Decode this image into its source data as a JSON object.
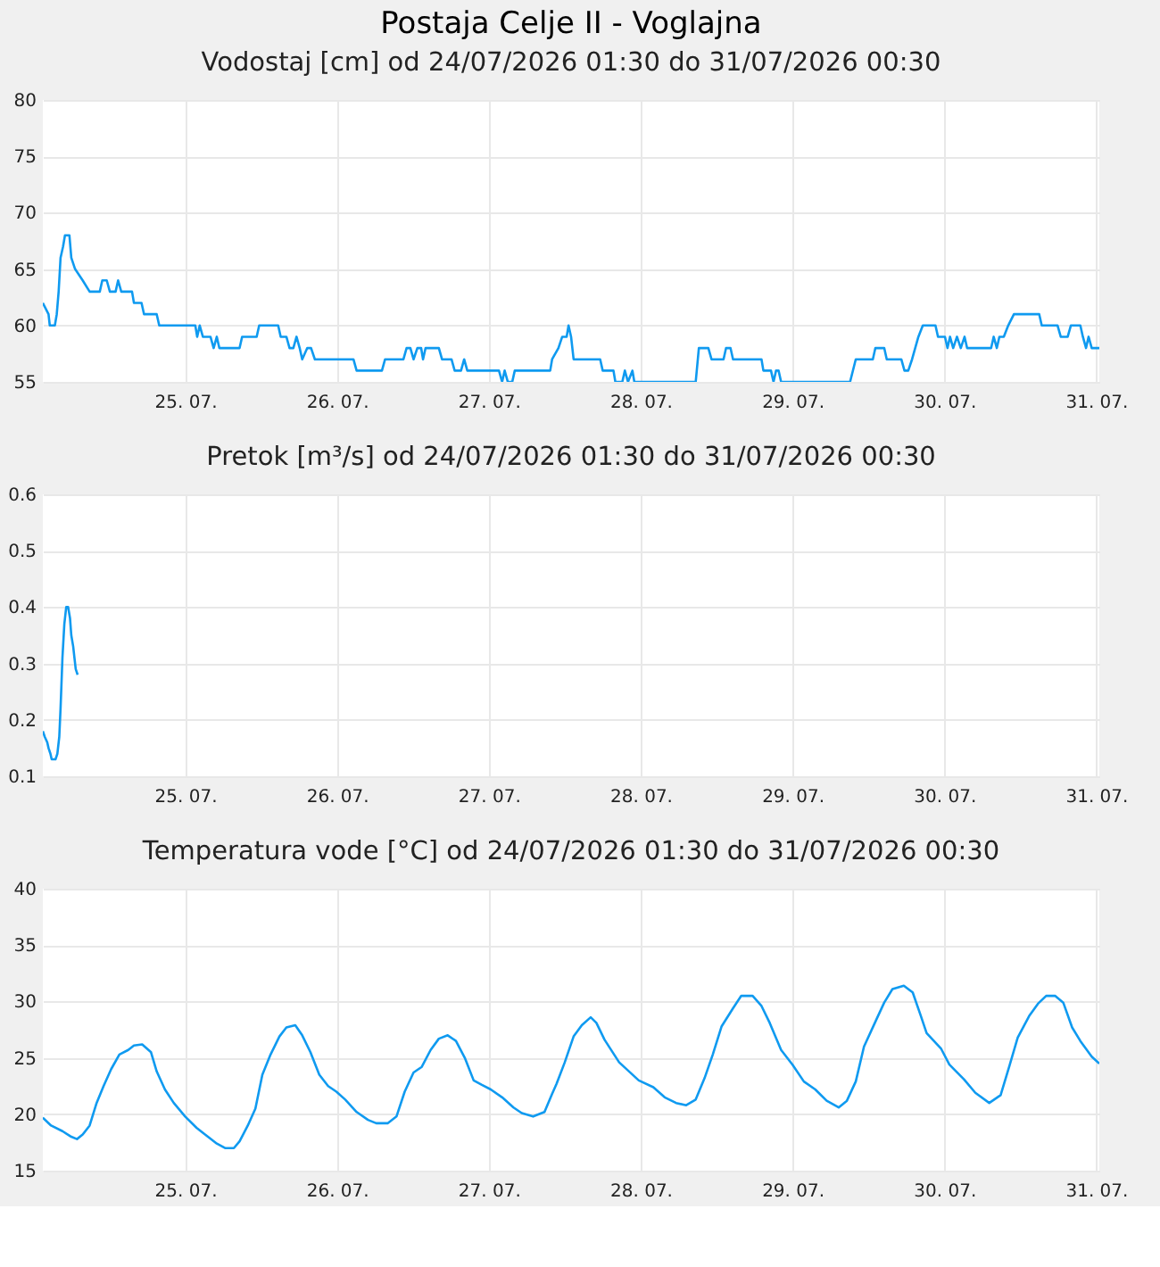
{
  "chart_data": [
    {
      "type": "line",
      "title": "Postaja Celje II - Voglajna",
      "subtitle": "Vodostaj [cm] od 24/07/2026 01:30 do 31/07/2026 00:30",
      "color": "#0f9af0",
      "grid": true,
      "marker": "none",
      "xlim": [
        "2026-07-24T01:30",
        "2026-07-31T00:30"
      ],
      "xticks": [
        {
          "value": "2026-07-25",
          "label": "25. 07."
        },
        {
          "value": "2026-07-26",
          "label": "26. 07."
        },
        {
          "value": "2026-07-27",
          "label": "27. 07."
        },
        {
          "value": "2026-07-28",
          "label": "28. 07."
        },
        {
          "value": "2026-07-29",
          "label": "29. 07."
        },
        {
          "value": "2026-07-30",
          "label": "30. 07."
        },
        {
          "value": "2026-07-31",
          "label": "31. 07."
        }
      ],
      "ylim": [
        55,
        80
      ],
      "yticks": [
        55,
        60,
        65,
        70,
        75,
        80
      ],
      "x": [
        "2026-07-24T01:30",
        "2026-07-24T02:24",
        "2026-07-24T02:36",
        "2026-07-24T03:24",
        "2026-07-24T03:42",
        "2026-07-24T04:00",
        "2026-07-24T04:18",
        "2026-07-24T04:42",
        "2026-07-24T05:00",
        "2026-07-24T05:42",
        "2026-07-24T06:00",
        "2026-07-24T06:36",
        "2026-07-24T07:48",
        "2026-07-24T08:54",
        "2026-07-24T10:30",
        "2026-07-24T10:54",
        "2026-07-24T11:36",
        "2026-07-24T12:06",
        "2026-07-24T13:00",
        "2026-07-24T13:24",
        "2026-07-24T13:54",
        "2026-07-24T15:36",
        "2026-07-24T15:54",
        "2026-07-24T17:06",
        "2026-07-24T17:30",
        "2026-07-24T19:30",
        "2026-07-24T19:54",
        "2026-07-25T01:36",
        "2026-07-25T01:54",
        "2026-07-25T02:18",
        "2026-07-25T02:48",
        "2026-07-25T04:00",
        "2026-07-25T04:30",
        "2026-07-25T05:00",
        "2026-07-25T05:24",
        "2026-07-25T08:36",
        "2026-07-25T09:00",
        "2026-07-25T11:18",
        "2026-07-25T11:42",
        "2026-07-25T14:42",
        "2026-07-25T15:06",
        "2026-07-25T16:00",
        "2026-07-25T16:30",
        "2026-07-25T17:06",
        "2026-07-25T17:36",
        "2026-07-25T18:06",
        "2026-07-25T18:30",
        "2026-07-25T19:18",
        "2026-07-25T19:54",
        "2026-07-25T20:30",
        "2026-07-26T02:36",
        "2026-07-26T03:06",
        "2026-07-26T07:06",
        "2026-07-26T07:36",
        "2026-07-26T10:30",
        "2026-07-26T11:00",
        "2026-07-26T11:36",
        "2026-07-26T12:06",
        "2026-07-26T12:42",
        "2026-07-26T13:18",
        "2026-07-26T13:36",
        "2026-07-26T14:00",
        "2026-07-26T16:06",
        "2026-07-26T16:36",
        "2026-07-26T18:06",
        "2026-07-26T18:36",
        "2026-07-26T19:36",
        "2026-07-26T20:06",
        "2026-07-26T20:36",
        "2026-07-27T01:36",
        "2026-07-27T02:06",
        "2026-07-27T02:30",
        "2026-07-27T03:00",
        "2026-07-27T03:42",
        "2026-07-27T04:06",
        "2026-07-27T09:42",
        "2026-07-27T10:00",
        "2026-07-27T11:00",
        "2026-07-27T11:36",
        "2026-07-27T12:18",
        "2026-07-27T12:36",
        "2026-07-27T13:00",
        "2026-07-27T13:24",
        "2026-07-27T17:36",
        "2026-07-27T18:00",
        "2026-07-27T19:42",
        "2026-07-27T20:00",
        "2026-07-27T21:06",
        "2026-07-27T21:30",
        "2026-07-27T22:00",
        "2026-07-27T22:42",
        "2026-07-27T23:00",
        "2026-07-28T08:42",
        "2026-07-28T09:12",
        "2026-07-28T10:42",
        "2026-07-28T11:12",
        "2026-07-28T13:06",
        "2026-07-28T13:30",
        "2026-07-28T14:12",
        "2026-07-28T14:36",
        "2026-07-28T19:06",
        "2026-07-28T19:24",
        "2026-07-28T20:36",
        "2026-07-28T21:00",
        "2026-07-28T21:24",
        "2026-07-28T21:48",
        "2026-07-28T22:12",
        "2026-07-29T09:06",
        "2026-07-29T10:00",
        "2026-07-29T12:42",
        "2026-07-29T13:06",
        "2026-07-29T14:30",
        "2026-07-29T14:54",
        "2026-07-29T17:12",
        "2026-07-29T17:42",
        "2026-07-29T18:18",
        "2026-07-29T18:54",
        "2026-07-29T19:54",
        "2026-07-29T20:36",
        "2026-07-29T22:36",
        "2026-07-29T23:00",
        "2026-07-30T00:06",
        "2026-07-30T00:30",
        "2026-07-30T00:54",
        "2026-07-30T01:24",
        "2026-07-30T02:00",
        "2026-07-30T02:36",
        "2026-07-30T03:12",
        "2026-07-30T03:36",
        "2026-07-30T07:24",
        "2026-07-30T07:48",
        "2026-07-30T08:18",
        "2026-07-30T08:42",
        "2026-07-30T09:24",
        "2026-07-30T10:06",
        "2026-07-30T11:00",
        "2026-07-30T15:00",
        "2026-07-30T15:24",
        "2026-07-30T17:54",
        "2026-07-30T18:24",
        "2026-07-30T19:30",
        "2026-07-30T20:00",
        "2026-07-30T21:30",
        "2026-07-30T21:54",
        "2026-07-30T22:24",
        "2026-07-30T22:48",
        "2026-07-30T23:18",
        "2026-07-31T00:30"
      ],
      "values": [
        62,
        61,
        60,
        60,
        61,
        63,
        66,
        67,
        68,
        68,
        66,
        65,
        64,
        63,
        63,
        64,
        64,
        63,
        63,
        64,
        63,
        63,
        62,
        62,
        61,
        61,
        60,
        60,
        59,
        60,
        59,
        59,
        58,
        59,
        58,
        58,
        59,
        59,
        60,
        60,
        59,
        59,
        58,
        58,
        59,
        58,
        57,
        58,
        58,
        57,
        57,
        56,
        56,
        57,
        57,
        58,
        58,
        57,
        58,
        58,
        57,
        58,
        58,
        57,
        57,
        56,
        56,
        57,
        56,
        56,
        55,
        56,
        55,
        55,
        56,
        56,
        57,
        58,
        59,
        59,
        60,
        59,
        57,
        57,
        56,
        56,
        55,
        55,
        56,
        55,
        56,
        55,
        55,
        58,
        58,
        57,
        57,
        58,
        58,
        57,
        57,
        56,
        56,
        55,
        56,
        56,
        55,
        55,
        57,
        57,
        58,
        58,
        57,
        57,
        56,
        56,
        57,
        59,
        60,
        60,
        59,
        59,
        58,
        59,
        58,
        59,
        58,
        59,
        58,
        58,
        59,
        58,
        59,
        59,
        60,
        61,
        61,
        60,
        60,
        59,
        59,
        60,
        60,
        59,
        58,
        59,
        58,
        58
      ]
    },
    {
      "type": "line",
      "title": "Pretok [m³/s] od 24/07/2026 01:30 do 31/07/2026 00:30",
      "color": "#0f9af0",
      "grid": true,
      "marker": "none",
      "xlim": [
        "2026-07-24T01:30",
        "2026-07-31T00:30"
      ],
      "xticks": [
        {
          "value": "2026-07-25",
          "label": "25. 07."
        },
        {
          "value": "2026-07-26",
          "label": "26. 07."
        },
        {
          "value": "2026-07-27",
          "label": "27. 07."
        },
        {
          "value": "2026-07-28",
          "label": "28. 07."
        },
        {
          "value": "2026-07-29",
          "label": "29. 07."
        },
        {
          "value": "2026-07-30",
          "label": "30. 07."
        },
        {
          "value": "2026-07-31",
          "label": "31. 07."
        }
      ],
      "ylim": [
        0.1,
        0.6
      ],
      "yticks": [
        0.1,
        0.2,
        0.3,
        0.4,
        0.5,
        0.6
      ],
      "x": [
        "2026-07-24T01:30",
        "2026-07-24T01:48",
        "2026-07-24T02:12",
        "2026-07-24T02:24",
        "2026-07-24T02:42",
        "2026-07-24T02:54",
        "2026-07-24T03:30",
        "2026-07-24T03:48",
        "2026-07-24T04:06",
        "2026-07-24T04:18",
        "2026-07-24T04:36",
        "2026-07-24T04:54",
        "2026-07-24T05:06",
        "2026-07-24T05:12",
        "2026-07-24T05:30",
        "2026-07-24T05:48",
        "2026-07-24T06:00",
        "2026-07-24T06:18",
        "2026-07-24T06:30",
        "2026-07-24T06:42",
        "2026-07-24T07:00"
      ],
      "values": [
        0.18,
        0.17,
        0.16,
        0.15,
        0.14,
        0.13,
        0.13,
        0.14,
        0.17,
        0.22,
        0.31,
        0.37,
        0.39,
        0.4,
        0.4,
        0.38,
        0.35,
        0.33,
        0.31,
        0.29,
        0.28
      ]
    },
    {
      "type": "line",
      "title": "Temperatura vode [°C] od 24/07/2026 01:30 do 31/07/2026 00:30",
      "color": "#0f9af0",
      "grid": true,
      "marker": "none",
      "xlim": [
        "2026-07-24T01:30",
        "2026-07-31T00:30"
      ],
      "xticks": [
        {
          "value": "2026-07-25",
          "label": "25. 07."
        },
        {
          "value": "2026-07-26",
          "label": "26. 07."
        },
        {
          "value": "2026-07-27",
          "label": "27. 07."
        },
        {
          "value": "2026-07-28",
          "label": "28. 07."
        },
        {
          "value": "2026-07-29",
          "label": "29. 07."
        },
        {
          "value": "2026-07-30",
          "label": "30. 07."
        },
        {
          "value": "2026-07-31",
          "label": "31. 07."
        }
      ],
      "ylim": [
        15,
        40
      ],
      "yticks": [
        15,
        20,
        25,
        30,
        35,
        40
      ],
      "x": [
        "2026-07-24T01:30",
        "2026-07-24T02:48",
        "2026-07-24T04:36",
        "2026-07-24T06:00",
        "2026-07-24T06:54",
        "2026-07-24T07:48",
        "2026-07-24T08:54",
        "2026-07-24T10:00",
        "2026-07-24T11:06",
        "2026-07-24T12:18",
        "2026-07-24T13:36",
        "2026-07-24T15:00",
        "2026-07-24T15:54",
        "2026-07-24T17:12",
        "2026-07-24T18:36",
        "2026-07-24T19:30",
        "2026-07-24T20:48",
        "2026-07-24T22:12",
        "2026-07-25T00:00",
        "2026-07-25T01:48",
        "2026-07-25T03:36",
        "2026-07-25T05:00",
        "2026-07-25T06:18",
        "2026-07-25T07:42",
        "2026-07-25T08:36",
        "2026-07-25T09:54",
        "2026-07-25T11:06",
        "2026-07-25T12:12",
        "2026-07-25T13:30",
        "2026-07-25T14:54",
        "2026-07-25T16:00",
        "2026-07-25T17:24",
        "2026-07-25T18:30",
        "2026-07-25T19:48",
        "2026-07-25T21:12",
        "2026-07-25T22:36",
        "2026-07-25T23:54",
        "2026-07-26T01:18",
        "2026-07-26T03:06",
        "2026-07-26T04:54",
        "2026-07-26T06:12",
        "2026-07-26T08:00",
        "2026-07-26T09:24",
        "2026-07-26T10:42",
        "2026-07-26T12:06",
        "2026-07-26T13:24",
        "2026-07-26T14:48",
        "2026-07-26T16:06",
        "2026-07-26T17:30",
        "2026-07-26T18:48",
        "2026-07-26T20:12",
        "2026-07-26T21:36",
        "2026-07-26T22:54",
        "2026-07-27T00:18",
        "2026-07-27T02:06",
        "2026-07-27T03:54",
        "2026-07-27T05:12",
        "2026-07-27T07:00",
        "2026-07-27T08:48",
        "2026-07-27T10:00",
        "2026-07-27T10:42",
        "2026-07-27T12:00",
        "2026-07-27T13:24",
        "2026-07-27T14:42",
        "2026-07-27T16:06",
        "2026-07-27T17:00",
        "2026-07-27T18:18",
        "2026-07-27T20:36",
        "2026-07-27T23:42",
        "2026-07-28T02:00",
        "2026-07-28T03:48",
        "2026-07-28T05:36",
        "2026-07-28T07:12",
        "2026-07-28T08:42",
        "2026-07-28T10:06",
        "2026-07-28T11:24",
        "2026-07-28T12:48",
        "2026-07-28T14:36",
        "2026-07-28T15:54",
        "2026-07-28T17:42",
        "2026-07-28T19:06",
        "2026-07-28T20:24",
        "2026-07-28T22:12",
        "2026-07-29T00:00",
        "2026-07-29T01:48",
        "2026-07-29T03:36",
        "2026-07-29T05:24",
        "2026-07-29T07:18",
        "2026-07-29T08:36",
        "2026-07-29T10:00",
        "2026-07-29T11:18",
        "2026-07-29T13:06",
        "2026-07-29T14:30",
        "2026-07-29T15:48",
        "2026-07-29T17:36",
        "2026-07-29T19:00",
        "2026-07-29T20:18",
        "2026-07-29T21:12",
        "2026-07-29T23:30",
        "2026-07-30T00:48",
        "2026-07-30T03:06",
        "2026-07-30T04:54",
        "2026-07-30T07:06",
        "2026-07-30T08:54",
        "2026-07-30T10:18",
        "2026-07-30T11:36",
        "2026-07-30T13:24",
        "2026-07-30T14:48",
        "2026-07-30T16:06",
        "2026-07-30T17:30",
        "2026-07-30T18:48",
        "2026-07-30T20:12",
        "2026-07-30T21:30",
        "2026-07-30T23:18",
        "2026-07-31T00:30"
      ],
      "values": [
        19.7,
        19.0,
        18.5,
        18.0,
        17.8,
        18.2,
        19.0,
        21.0,
        22.5,
        24.0,
        25.3,
        25.7,
        26.1,
        26.2,
        25.5,
        23.8,
        22.2,
        21.0,
        19.8,
        18.8,
        18.0,
        17.4,
        17.0,
        17.0,
        17.6,
        19.0,
        20.5,
        23.5,
        25.3,
        26.9,
        27.7,
        27.9,
        27.0,
        25.5,
        23.5,
        22.5,
        22.0,
        21.3,
        20.2,
        19.5,
        19.2,
        19.2,
        19.8,
        22.0,
        23.7,
        24.2,
        25.7,
        26.7,
        27.0,
        26.5,
        25.0,
        23.0,
        22.6,
        22.2,
        21.5,
        20.6,
        20.1,
        19.8,
        20.2,
        21.8,
        22.7,
        24.6,
        26.9,
        27.9,
        28.6,
        28.1,
        26.6,
        24.6,
        23.0,
        22.4,
        21.5,
        21.0,
        20.8,
        21.3,
        23.2,
        25.3,
        27.8,
        29.4,
        30.5,
        30.5,
        29.6,
        28.1,
        25.7,
        24.4,
        22.9,
        22.2,
        21.2,
        20.6,
        21.2,
        22.9,
        26.0,
        28.2,
        29.9,
        31.1,
        31.4,
        30.8,
        28.7,
        27.2,
        25.8,
        24.4,
        23.1,
        21.9,
        21.0,
        21.7,
        24.3,
        26.8,
        28.7,
        29.8,
        30.5,
        30.5,
        29.9,
        27.7,
        26.5,
        25.1,
        24.5
      ]
    }
  ]
}
